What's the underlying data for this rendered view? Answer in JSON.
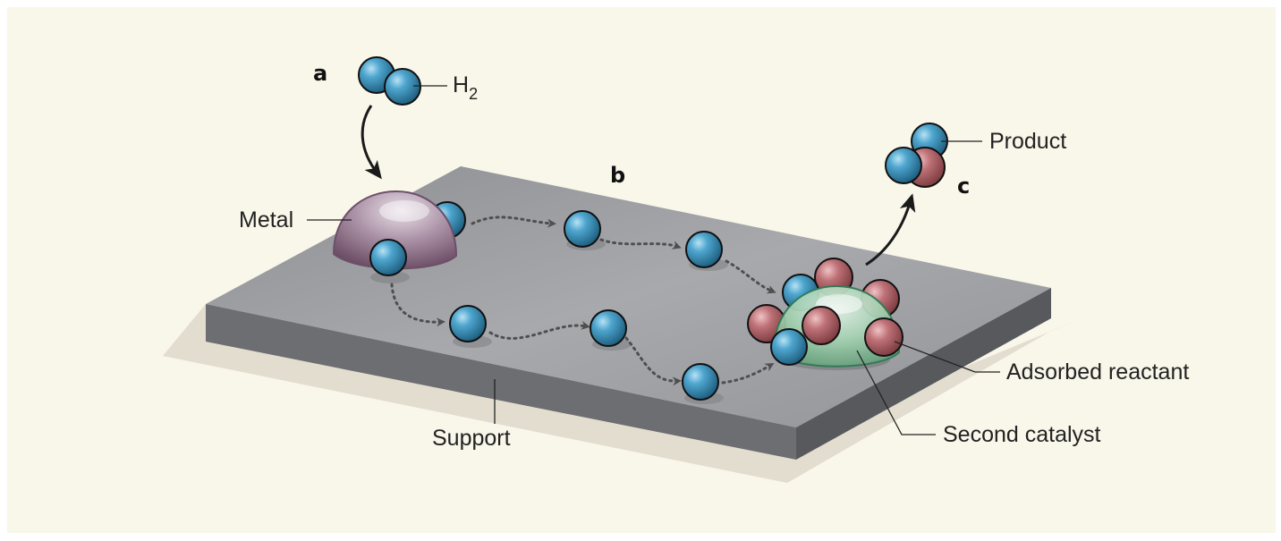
{
  "labels": {
    "step_a": "a",
    "step_b": "b",
    "step_c": "c",
    "h2_main": "H",
    "h2_sub": "2",
    "metal": "Metal",
    "product": "Product",
    "adsorbed_reactant": "Adsorbed reactant",
    "second_catalyst": "Second catalyst",
    "support": "Support"
  },
  "colors": {
    "background": "#f9f6ea",
    "support_top": "#9c9da1",
    "support_front": "#6c6d71",
    "support_side": "#55565a",
    "shadow": "#e4e0d3",
    "hydrogen_atom": "#3f93bd",
    "reactant_atom": "#b96d72",
    "metal_dome": "#9e859a",
    "catalyst_dome": "#8fc3a0",
    "arrow": "#555555"
  }
}
